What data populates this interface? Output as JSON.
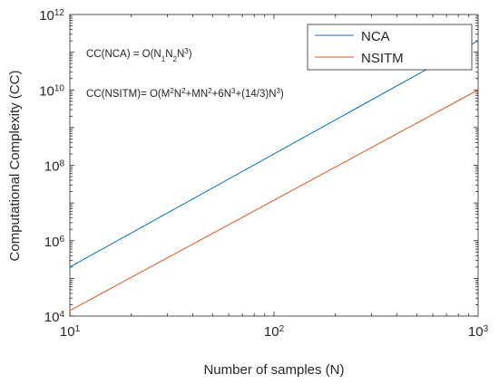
{
  "chart_data": {
    "type": "line",
    "x_scale": "log",
    "y_scale": "log",
    "xlabel": "Number of samples (N)",
    "ylabel": "Computational Complexity (CC)",
    "xlim": [
      10,
      1000
    ],
    "ylim": [
      10000,
      1000000000000
    ],
    "x_ticks": [
      {
        "base": "10",
        "exp": "1",
        "value": 10
      },
      {
        "base": "10",
        "exp": "2",
        "value": 100
      },
      {
        "base": "10",
        "exp": "3",
        "value": 1000
      }
    ],
    "y_ticks": [
      {
        "base": "10",
        "exp": "4",
        "value": 10000
      },
      {
        "base": "10",
        "exp": "6",
        "value": 1000000
      },
      {
        "base": "10",
        "exp": "8",
        "value": 100000000
      },
      {
        "base": "10",
        "exp": "10",
        "value": 10000000000
      },
      {
        "base": "10",
        "exp": "12",
        "value": 1000000000000
      }
    ],
    "series": [
      {
        "name": "NCA",
        "color": "#0072BD",
        "x": [
          10,
          1000
        ],
        "y": [
          200000,
          200000000000
        ]
      },
      {
        "name": "NSITM",
        "color": "#D95319",
        "x": [
          10,
          1000
        ],
        "y": [
          14000,
          10000000000
        ]
      }
    ],
    "legend_position": "top-right",
    "annotations": {
      "nca": {
        "prefix": "CC(NCA) = O(N",
        "s1": "1",
        "m1": "N",
        "s2": "2",
        "m2": "N",
        "s3": "3",
        "suffix": ")"
      },
      "nsitm": {
        "prefix": "CC(NSITM)= O(M",
        "p1": "2",
        "m1": "N",
        "p2": "2",
        "m2": "+MN",
        "p3": "2",
        "m3": "+6N",
        "p4": "3",
        "m4": "+(14/3)N",
        "p5": "3",
        "suffix": ")"
      }
    }
  }
}
